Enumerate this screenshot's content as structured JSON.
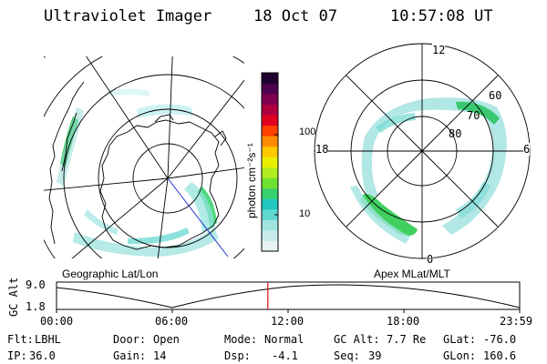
{
  "header": {
    "instrument": "Ultraviolet Imager",
    "date": "18 Oct 07",
    "time": "10:57:08 UT"
  },
  "geo_panel": {
    "label": "Geographic Lat/Lon"
  },
  "mag_panel": {
    "label": "Apex MLat/MLT",
    "mlt_labels": {
      "top": "12",
      "left": "18",
      "right": "6",
      "bottom": "0"
    },
    "lat_labels": [
      "60",
      "70",
      "80"
    ]
  },
  "colorbar": {
    "unit_label": "photon cm⁻²s⁻¹",
    "tick_labels": [
      "100",
      "10"
    ],
    "colors": [
      "#e8f4f4",
      "#c8ecec",
      "#a0e4e0",
      "#60d8d0",
      "#20c8c0",
      "#38d070",
      "#70e030",
      "#b0ec20",
      "#e8f000",
      "#ffc800",
      "#ff8c00",
      "#ff4000",
      "#e00020",
      "#b00040",
      "#800050",
      "#500050",
      "#200030"
    ]
  },
  "altitude_plot": {
    "ylabel": "GC Alt",
    "y_ticks": [
      "9.0",
      "1.8"
    ],
    "x_ticks": [
      "00:00",
      "06:00",
      "12:00",
      "18:00",
      "23:59"
    ],
    "marker_time_hours": 10.95
  },
  "info_rows": [
    [
      {
        "label": "Flt:",
        "value": "LBHL"
      },
      {
        "label": "Door:",
        "value": "Open"
      },
      {
        "label": "Mode:",
        "value": "Normal"
      },
      {
        "label": "GC Alt:",
        "value": "7.7 Re"
      },
      {
        "label": "GLat:",
        "value": "-76.0"
      }
    ],
    [
      {
        "label": "IP:",
        "value": "36.0"
      },
      {
        "label": "Gain:",
        "value": "14"
      },
      {
        "label": "Dsp:",
        "value": "-4.1"
      },
      {
        "label": "Seq:",
        "value": "39"
      },
      {
        "label": "GLon:",
        "value": "160.6"
      }
    ]
  ]
}
